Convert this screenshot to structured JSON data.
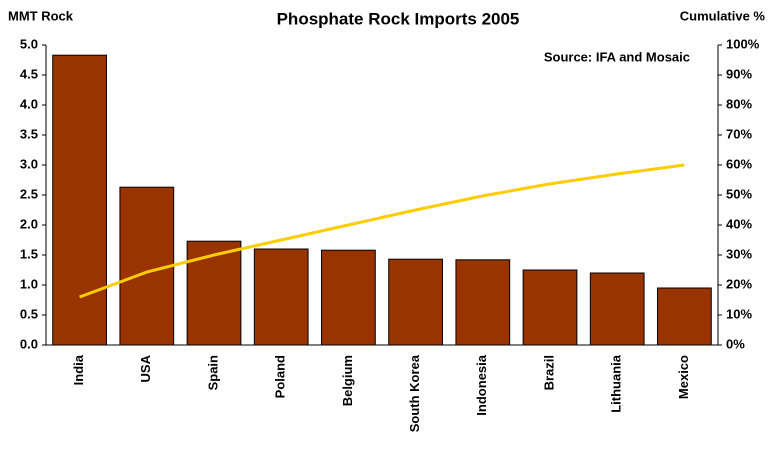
{
  "chart_data": {
    "type": "bar",
    "title": "Phosphate Rock Imports 2005",
    "y_label": "MMT Rock",
    "y2_label": "Cumulative %",
    "annotation": "Source: IFA and Mosaic",
    "categories": [
      "India",
      "USA",
      "Spain",
      "Poland",
      "Belgium",
      "South Korea",
      "Indonesia",
      "Brazil",
      "Lithuania",
      "Mexico"
    ],
    "series": [
      {
        "type": "bar",
        "color": "#993300",
        "values": [
          4.83,
          2.63,
          1.73,
          1.6,
          1.58,
          1.43,
          1.42,
          1.25,
          1.2,
          0.95
        ]
      },
      {
        "type": "line",
        "axis": "y2",
        "color": "#ffcc00",
        "values": [
          16,
          24.3,
          30,
          35,
          40,
          45,
          49.7,
          53.7,
          57,
          60
        ]
      }
    ],
    "ylim": [
      0,
      5
    ],
    "yticks": [
      {
        "value": 0,
        "label": "0.0"
      },
      0.5,
      {
        "value": 1,
        "label": "1.0"
      },
      1.5,
      {
        "value": 2,
        "label": "2.0"
      },
      2.5,
      {
        "value": 3,
        "label": "3.0"
      },
      3.5,
      {
        "value": 4,
        "label": "4.0"
      },
      4.5,
      {
        "value": 5,
        "label": "5.0"
      }
    ],
    "y2lim": [
      0,
      100
    ],
    "y2ticks": [
      {
        "value": 0,
        "label": "0%"
      },
      {
        "value": 10,
        "label": "10%"
      },
      {
        "value": 20,
        "label": "20%"
      },
      {
        "value": 30,
        "label": "30%"
      },
      {
        "value": 40,
        "label": "40%"
      },
      {
        "value": 50,
        "label": "50%"
      },
      {
        "value": 60,
        "label": "60%"
      },
      {
        "value": 70,
        "label": "70%"
      },
      {
        "value": 80,
        "label": "80%"
      },
      {
        "value": 90,
        "label": "90%"
      },
      {
        "value": 100,
        "label": "100%"
      }
    ],
    "grid": false
  }
}
